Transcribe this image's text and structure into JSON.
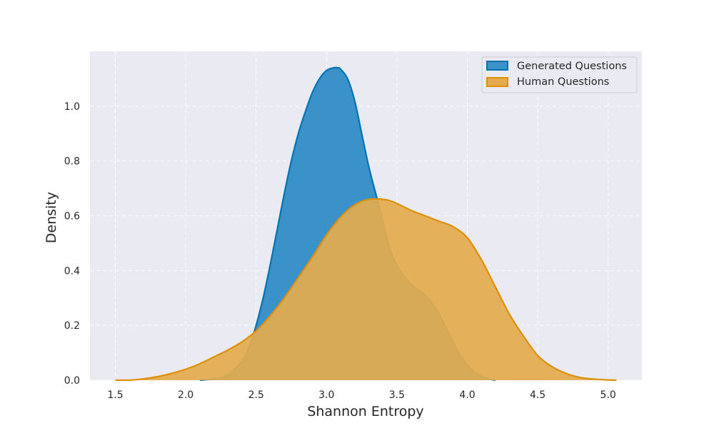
{
  "chart_data": {
    "type": "area",
    "title": "",
    "xlabel": "Shannon Entropy",
    "ylabel": "Density",
    "xlim": [
      1.32,
      5.24
    ],
    "ylim": [
      0,
      1.2
    ],
    "xticks": [
      1.5,
      2.0,
      2.5,
      3.0,
      3.5,
      4.0,
      4.5,
      5.0
    ],
    "xtick_labels": [
      "1.5",
      "2.0",
      "2.5",
      "3.0",
      "3.5",
      "4.0",
      "4.5",
      "5.0"
    ],
    "yticks": [
      0.0,
      0.2,
      0.4,
      0.6,
      0.8,
      1.0
    ],
    "ytick_labels": [
      "0.0",
      "0.2",
      "0.4",
      "0.6",
      "0.8",
      "1.0"
    ],
    "grid": true,
    "legend_position": "top-right",
    "series": [
      {
        "name": "Generated Questions",
        "color": "#0173b2",
        "fill_color": "#3a92c8",
        "x": [
          2.1,
          2.2,
          2.3,
          2.4,
          2.45,
          2.5,
          2.55,
          2.6,
          2.65,
          2.7,
          2.75,
          2.8,
          2.85,
          2.9,
          2.95,
          3.0,
          3.05,
          3.08,
          3.1,
          3.15,
          3.2,
          3.25,
          3.3,
          3.35,
          3.4,
          3.45,
          3.5,
          3.55,
          3.6,
          3.65,
          3.7,
          3.75,
          3.8,
          3.85,
          3.9,
          3.95,
          4.0,
          4.05,
          4.1,
          4.15,
          4.2
        ],
        "values": [
          0.0,
          0.005,
          0.02,
          0.07,
          0.12,
          0.2,
          0.3,
          0.42,
          0.55,
          0.68,
          0.8,
          0.9,
          0.98,
          1.05,
          1.1,
          1.13,
          1.14,
          1.14,
          1.135,
          1.1,
          1.02,
          0.9,
          0.78,
          0.68,
          0.58,
          0.48,
          0.42,
          0.38,
          0.35,
          0.33,
          0.31,
          0.28,
          0.24,
          0.19,
          0.14,
          0.09,
          0.055,
          0.03,
          0.015,
          0.005,
          0.0
        ]
      },
      {
        "name": "Human Questions",
        "color": "#de8f05",
        "fill_color": "#e3ac4f",
        "x": [
          1.5,
          1.6,
          1.7,
          1.8,
          1.9,
          2.0,
          2.1,
          2.2,
          2.3,
          2.4,
          2.5,
          2.6,
          2.7,
          2.8,
          2.9,
          3.0,
          3.1,
          3.2,
          3.3,
          3.4,
          3.45,
          3.5,
          3.6,
          3.7,
          3.8,
          3.9,
          4.0,
          4.1,
          4.2,
          4.3,
          4.4,
          4.5,
          4.6,
          4.7,
          4.8,
          4.9,
          5.0,
          5.06
        ],
        "values": [
          0.0,
          0.0,
          0.005,
          0.013,
          0.025,
          0.04,
          0.06,
          0.085,
          0.11,
          0.14,
          0.18,
          0.235,
          0.3,
          0.375,
          0.45,
          0.53,
          0.595,
          0.64,
          0.66,
          0.66,
          0.655,
          0.645,
          0.62,
          0.6,
          0.58,
          0.56,
          0.52,
          0.44,
          0.34,
          0.24,
          0.16,
          0.09,
          0.05,
          0.025,
          0.01,
          0.004,
          0.001,
          0.0
        ]
      }
    ]
  }
}
